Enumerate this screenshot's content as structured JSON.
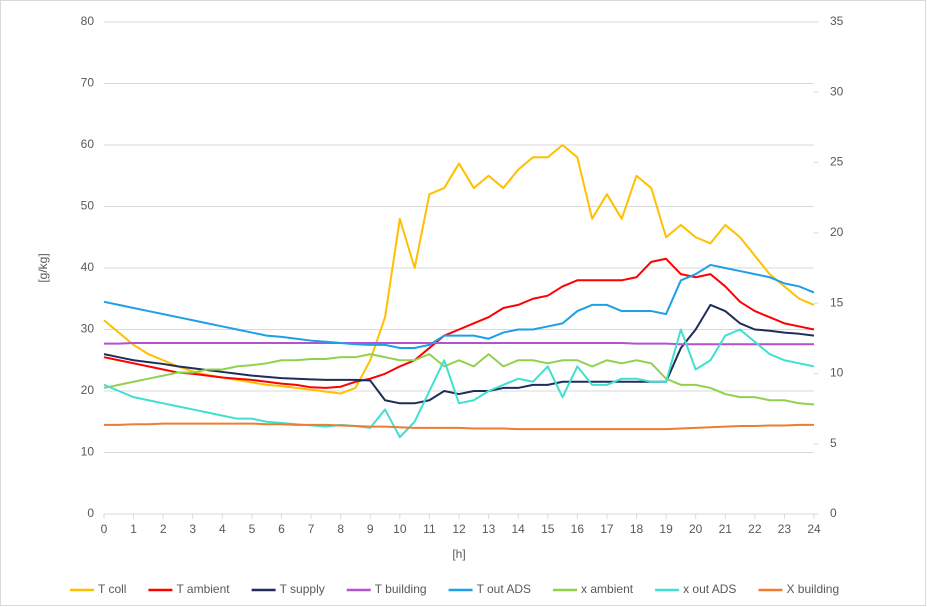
{
  "chart_data": {
    "type": "line",
    "x_label": "[h]",
    "y_label": "[g/kg]",
    "x": [
      0,
      0.5,
      1,
      1.5,
      2,
      2.5,
      3,
      3.5,
      4,
      4.5,
      5,
      5.5,
      6,
      6.5,
      7,
      7.5,
      8,
      8.5,
      9,
      9.5,
      10,
      10.5,
      11,
      11.5,
      12,
      12.5,
      13,
      13.5,
      14,
      14.5,
      15,
      15.5,
      16,
      16.5,
      17,
      17.5,
      18,
      18.5,
      19,
      19.5,
      20,
      20.5,
      21,
      21.5,
      22,
      22.5,
      23,
      23.5,
      24
    ],
    "xlim": [
      0,
      24
    ],
    "xticks": [
      0,
      1,
      2,
      3,
      4,
      5,
      6,
      7,
      8,
      9,
      10,
      11,
      12,
      13,
      14,
      15,
      16,
      17,
      18,
      19,
      20,
      21,
      22,
      23,
      24
    ],
    "ylim": [
      0,
      80
    ],
    "yticks": [
      0,
      10,
      20,
      30,
      40,
      50,
      60,
      70,
      80
    ],
    "y2lim": [
      0,
      35
    ],
    "y2ticks": [
      0,
      5,
      10,
      15,
      20,
      25,
      30,
      35
    ],
    "grid": true,
    "legend": "bottom",
    "series": [
      {
        "name": "T coll",
        "color": "#ffc000",
        "values": [
          31.5,
          29.5,
          27.5,
          26,
          25,
          24,
          23.2,
          22.6,
          22.2,
          21.8,
          21.4,
          21,
          20.8,
          20.5,
          20.2,
          19.9,
          19.6,
          20.5,
          25,
          32,
          48,
          40,
          52,
          53,
          57,
          53,
          55,
          53,
          56,
          58,
          58,
          60,
          58,
          48,
          52,
          48,
          55,
          53,
          45,
          47,
          45,
          44,
          47,
          45,
          42,
          39,
          37,
          35,
          34
        ]
      },
      {
        "name": "T ambient",
        "color": "#ff0000",
        "values": [
          25.5,
          25,
          24.5,
          24,
          23.5,
          23,
          22.8,
          22.5,
          22.2,
          22,
          21.8,
          21.5,
          21.2,
          21,
          20.6,
          20.5,
          20.7,
          21.5,
          22,
          22.8,
          24,
          25,
          27,
          29,
          30,
          31,
          32,
          33.5,
          34,
          35,
          35.5,
          37,
          38,
          38,
          38,
          38,
          38.5,
          41,
          41.5,
          39,
          38.5,
          39,
          37,
          34.5,
          33,
          32,
          31,
          30.5,
          30
        ]
      },
      {
        "name": "T supply",
        "color": "#1f2d5a",
        "values": [
          26,
          25.5,
          25,
          24.7,
          24.4,
          24,
          23.7,
          23.4,
          23.1,
          22.8,
          22.5,
          22.3,
          22.1,
          22,
          21.9,
          21.8,
          21.8,
          21.8,
          21.7,
          18.5,
          18,
          18,
          18.5,
          20,
          19.5,
          20,
          20,
          20.5,
          20.5,
          21,
          21,
          21.5,
          21.5,
          21.5,
          21.5,
          21.5,
          21.5,
          21.5,
          21.5,
          27,
          30,
          34,
          33,
          31,
          30,
          29.8,
          29.5,
          29.3,
          29
        ]
      },
      {
        "name": "T building",
        "color": "#b452cd",
        "values": [
          27.7,
          27.7,
          27.8,
          27.8,
          27.8,
          27.8,
          27.8,
          27.8,
          27.8,
          27.8,
          27.8,
          27.8,
          27.8,
          27.8,
          27.8,
          27.8,
          27.8,
          27.8,
          27.8,
          27.8,
          27.8,
          27.8,
          27.8,
          27.8,
          27.8,
          27.8,
          27.8,
          27.8,
          27.8,
          27.8,
          27.8,
          27.8,
          27.8,
          27.8,
          27.8,
          27.8,
          27.7,
          27.7,
          27.7,
          27.6,
          27.6,
          27.6,
          27.6,
          27.6,
          27.6,
          27.6,
          27.6,
          27.6,
          27.6
        ]
      },
      {
        "name": "T out ADS",
        "color": "#1ea0e6",
        "values": [
          34.5,
          34,
          33.5,
          33,
          32.5,
          32,
          31.5,
          31,
          30.5,
          30,
          29.5,
          29,
          28.8,
          28.5,
          28.2,
          28,
          27.8,
          27.6,
          27.5,
          27.5,
          27,
          27,
          27.5,
          29,
          29,
          29,
          28.5,
          29.5,
          30,
          30,
          30.5,
          31,
          33,
          34,
          34,
          33,
          33,
          33,
          32.5,
          38,
          39,
          40.5,
          40,
          39.5,
          39,
          38.5,
          37.5,
          37,
          36
        ]
      },
      {
        "name": "x ambient",
        "color": "#92d050",
        "values": [
          20.5,
          21,
          21.5,
          22,
          22.5,
          23,
          23,
          23.5,
          23.5,
          24,
          24.2,
          24.5,
          25,
          25,
          25.2,
          25.2,
          25.5,
          25.5,
          26,
          25.5,
          25,
          25,
          26,
          24,
          25,
          24,
          26,
          24,
          25,
          25,
          24.5,
          25,
          25,
          24,
          25,
          24.5,
          25,
          24.5,
          22,
          21,
          21,
          20.5,
          19.5,
          19,
          19,
          18.5,
          18.5,
          18,
          17.8
        ]
      },
      {
        "name": "x out ADS",
        "color": "#40e0d0",
        "values": [
          21,
          20,
          19,
          18.5,
          18,
          17.5,
          17,
          16.5,
          16,
          15.5,
          15.5,
          15,
          14.8,
          14.6,
          14.4,
          14.2,
          14.5,
          14.3,
          14,
          17,
          12.5,
          15,
          20,
          25,
          18,
          18.5,
          20,
          21,
          22,
          21.5,
          24,
          19,
          24,
          21,
          21,
          22,
          22,
          21.5,
          21.5,
          30,
          23.5,
          25,
          29,
          30,
          28,
          26,
          25,
          24.5,
          24
        ]
      },
      {
        "name": "X building",
        "color": "#ed7d31",
        "values": [
          14.5,
          14.5,
          14.6,
          14.6,
          14.7,
          14.7,
          14.7,
          14.7,
          14.7,
          14.7,
          14.7,
          14.6,
          14.6,
          14.5,
          14.5,
          14.5,
          14.4,
          14.3,
          14.2,
          14.2,
          14.1,
          14,
          14,
          14,
          14,
          13.9,
          13.9,
          13.9,
          13.8,
          13.8,
          13.8,
          13.8,
          13.8,
          13.8,
          13.8,
          13.8,
          13.8,
          13.8,
          13.8,
          13.9,
          14,
          14.1,
          14.2,
          14.3,
          14.3,
          14.4,
          14.4,
          14.5,
          14.5
        ]
      }
    ]
  }
}
